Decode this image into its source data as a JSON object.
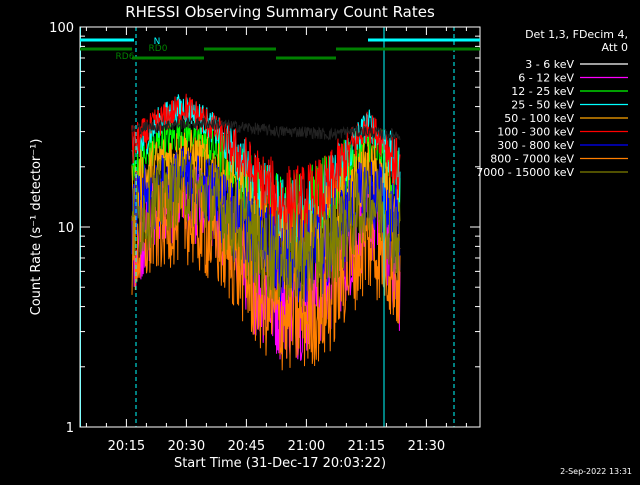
{
  "chart_data": {
    "type": "line",
    "title": "RHESSI Observing Summary Count Rates",
    "xlabel": "Start Time (31-Dec-17 20:03:22)",
    "ylabel": "Count Rate (s⁻¹ detector⁻¹)",
    "yscale": "log",
    "ylim": [
      1,
      100
    ],
    "xlim_minutes_after_start": [
      0,
      100
    ],
    "x_start_time": "20:03:22",
    "x_tick_labels": [
      "20:15",
      "20:30",
      "20:45",
      "21:00",
      "21:15",
      "21:30"
    ],
    "x_tick_minutes": [
      11.6,
      26.6,
      41.6,
      56.6,
      71.6,
      86.6
    ],
    "y_tick_labels": [
      "1",
      "10",
      "100"
    ],
    "y_tick_values": [
      1,
      10,
      100
    ],
    "grid": false,
    "legend_position": "right",
    "legend_header": [
      "Det 1,3, FDecim 4,",
      "Att 0"
    ],
    "data_span_minutes": [
      13.0,
      80.0
    ],
    "series": [
      {
        "name": "3 - 6 keV",
        "color": "#000000",
        "x": [
          13,
          20,
          26,
          32,
          38,
          44,
          50,
          56,
          62,
          68,
          72,
          76,
          80
        ],
        "y": [
          31,
          32,
          33,
          33,
          32,
          31,
          30,
          30,
          29,
          30,
          30,
          29,
          29
        ]
      },
      {
        "name": "6 - 12 keV",
        "color": "#ff00ff",
        "x": [
          13,
          20,
          26,
          32,
          38,
          44,
          50,
          56,
          62,
          68,
          72,
          76,
          80
        ],
        "y": [
          8,
          12,
          14,
          12,
          9,
          5,
          4,
          4,
          5,
          8,
          11,
          9,
          5
        ]
      },
      {
        "name": "12 - 25 keV",
        "color": "#00ff00",
        "x": [
          13,
          20,
          26,
          32,
          38,
          44,
          50,
          56,
          62,
          68,
          72,
          76,
          80
        ],
        "y": [
          18,
          26,
          30,
          26,
          20,
          15,
          12,
          12,
          15,
          21,
          27,
          22,
          15
        ]
      },
      {
        "name": "25 - 50 keV",
        "color": "#00ffff",
        "x": [
          13,
          20,
          26,
          32,
          38,
          44,
          50,
          56,
          62,
          68,
          72,
          76,
          80
        ],
        "y": [
          22,
          34,
          40,
          33,
          24,
          16,
          11,
          11,
          14,
          25,
          33,
          26,
          17
        ]
      },
      {
        "name": "50 - 100 keV",
        "color": "#ffa500",
        "x": [
          13,
          20,
          26,
          32,
          38,
          44,
          50,
          56,
          62,
          68,
          72,
          76,
          80
        ],
        "y": [
          14,
          21,
          24,
          20,
          15,
          10,
          8,
          8,
          10,
          15,
          19,
          16,
          10
        ]
      },
      {
        "name": "100 - 300 keV",
        "color": "#ff0000",
        "x": [
          13,
          20,
          26,
          32,
          38,
          44,
          50,
          56,
          62,
          68,
          72,
          76,
          80
        ],
        "y": [
          25,
          34,
          40,
          33,
          25,
          17,
          13,
          13,
          15,
          25,
          32,
          27,
          18
        ]
      },
      {
        "name": "300 - 800 keV",
        "color": "#0000ff",
        "x": [
          13,
          20,
          26,
          32,
          38,
          44,
          50,
          56,
          62,
          68,
          72,
          76,
          80
        ],
        "y": [
          11,
          15,
          17,
          15,
          11,
          8,
          7,
          7,
          8,
          12,
          15,
          13,
          9
        ]
      },
      {
        "name": "800 - 7000 keV",
        "color": "#ff7f00",
        "x": [
          13,
          20,
          26,
          32,
          38,
          44,
          50,
          56,
          62,
          68,
          72,
          76,
          80
        ],
        "y": [
          7,
          10,
          11,
          9,
          7,
          4.5,
          3.5,
          3.5,
          4,
          6.5,
          8,
          7,
          5
        ]
      },
      {
        "name": "7000 - 15000 keV",
        "color": "#808000",
        "x": [
          13,
          20,
          26,
          32,
          38,
          44,
          50,
          56,
          62,
          68,
          72,
          76,
          80
        ],
        "y": [
          10,
          14,
          16,
          14,
          11,
          8,
          7,
          7,
          8,
          11,
          14,
          12,
          8
        ]
      }
    ],
    "flag_bars": [
      {
        "label": "",
        "color": "#00ffff",
        "segments_minutes": [
          [
            0,
            13.5
          ],
          [
            72,
            100
          ]
        ]
      },
      {
        "label": "N",
        "color": "#00ffff",
        "segments_minutes": []
      },
      {
        "label": "RD0",
        "color": "#008000",
        "segments_minutes": [
          [
            0,
            13
          ],
          [
            31,
            49
          ],
          [
            64,
            100
          ]
        ]
      },
      {
        "label": "RD6",
        "color": "#008000",
        "segments_minutes": [
          [
            13,
            31
          ],
          [
            49,
            64
          ]
        ]
      }
    ],
    "vertical_lines": [
      {
        "x_minutes": 0,
        "color": "#00ffff",
        "style": "solid"
      },
      {
        "x_minutes": 14,
        "color": "#00ffff",
        "style": "dashed"
      },
      {
        "x_minutes": 76,
        "color": "#00ffff",
        "style": "solid"
      },
      {
        "x_minutes": 93.5,
        "color": "#00ffff",
        "style": "dashed"
      }
    ],
    "footer_date": "2-Sep-2022 13:31"
  }
}
